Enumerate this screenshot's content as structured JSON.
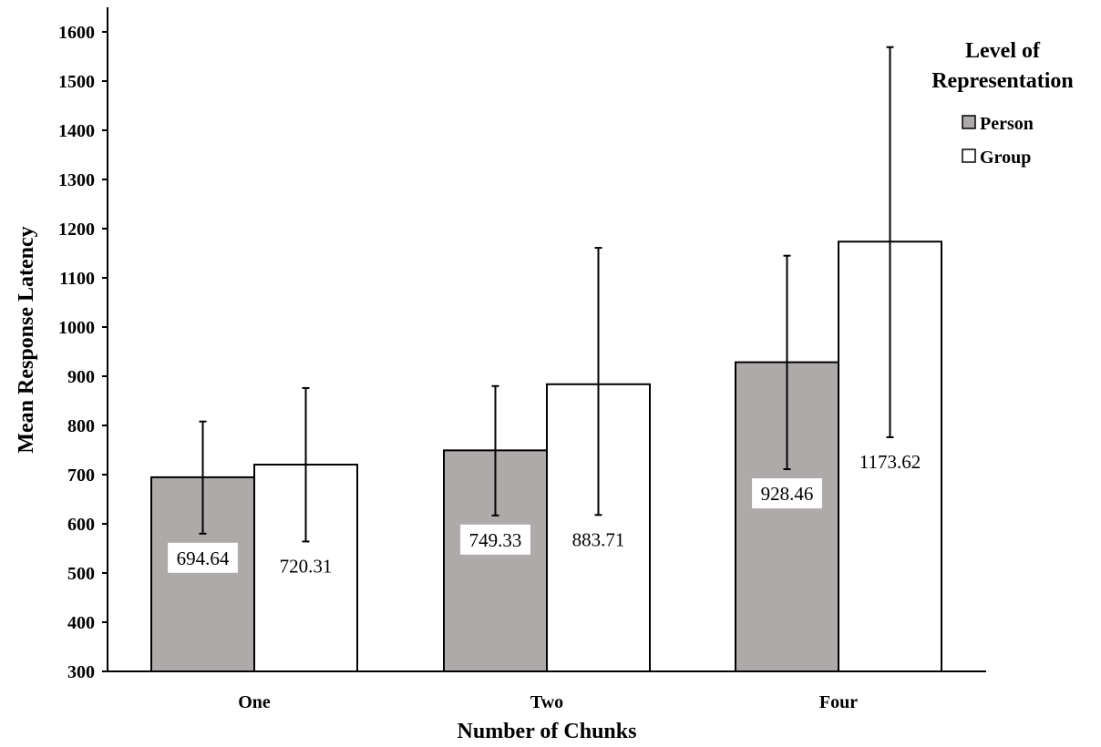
{
  "chart_data": {
    "type": "bar",
    "xlabel": "Number of Chunks",
    "ylabel": "Mean Response Latency",
    "ylim": [
      300,
      1600
    ],
    "yticks": [
      300,
      400,
      500,
      600,
      700,
      800,
      900,
      1000,
      1100,
      1200,
      1300,
      1400,
      1500,
      1600
    ],
    "grid": false,
    "categories": [
      "One",
      "Two",
      "Four"
    ],
    "series": [
      {
        "name": "Person",
        "color": "#aeaaaa",
        "values": [
          694.64,
          749.33,
          928.46
        ],
        "error_high": [
          808,
          880,
          1145
        ],
        "error_low": [
          580,
          617,
          711
        ],
        "labels": [
          "694.64",
          "749.33",
          "928.46"
        ]
      },
      {
        "name": "Group",
        "color": "#ffffff",
        "values": [
          720.31,
          883.71,
          1173.62
        ],
        "error_high": [
          876,
          1161,
          1569
        ],
        "error_low": [
          564,
          618,
          776
        ],
        "labels": [
          "720.31",
          "883.71",
          "1173.62"
        ]
      }
    ],
    "legend": {
      "title_line1": "Level of",
      "title_line2": "Representation",
      "placement": "top-right"
    }
  }
}
